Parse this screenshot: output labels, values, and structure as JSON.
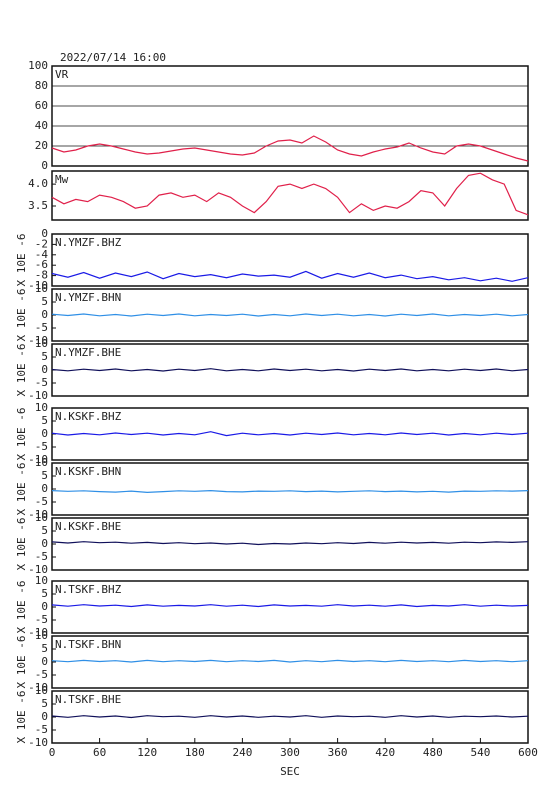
{
  "chart_data": [
    {
      "type": "line",
      "title": "2022/07/14 16:00",
      "label": "VR",
      "color": "#e0204a",
      "ylim": [
        0,
        100
      ],
      "yticks": [
        0,
        20,
        40,
        60,
        80,
        100
      ],
      "grid": true,
      "x": [
        0,
        15,
        30,
        45,
        60,
        75,
        90,
        105,
        120,
        135,
        150,
        165,
        180,
        195,
        210,
        225,
        240,
        255,
        270,
        285,
        300,
        315,
        330,
        345,
        360,
        375,
        390,
        405,
        420,
        435,
        450,
        465,
        480,
        495,
        510,
        525,
        540,
        555,
        570,
        585,
        600
      ],
      "values": [
        18,
        14,
        16,
        20,
        22,
        20,
        17,
        14,
        12,
        13,
        15,
        17,
        18,
        16,
        14,
        12,
        11,
        13,
        20,
        25,
        26,
        23,
        30,
        24,
        16,
        12,
        10,
        14,
        17,
        19,
        23,
        18,
        14,
        12,
        20,
        22,
        20,
        16,
        12,
        8,
        5
      ]
    },
    {
      "type": "line",
      "label": "Mw",
      "color": "#e0204a",
      "ylim": [
        3.18,
        4.3
      ],
      "yticks": [
        3.5,
        {
          "value": 4,
          "label": "4.0"
        }
      ],
      "x": [
        0,
        15,
        30,
        45,
        60,
        75,
        90,
        105,
        120,
        135,
        150,
        165,
        180,
        195,
        210,
        225,
        240,
        255,
        270,
        285,
        300,
        315,
        330,
        345,
        360,
        375,
        390,
        405,
        420,
        435,
        450,
        465,
        480,
        495,
        510,
        525,
        540,
        555,
        570,
        585,
        600
      ],
      "values": [
        3.7,
        3.55,
        3.65,
        3.6,
        3.75,
        3.7,
        3.6,
        3.45,
        3.5,
        3.75,
        3.8,
        3.7,
        3.75,
        3.6,
        3.8,
        3.7,
        3.5,
        3.35,
        3.6,
        3.95,
        4.0,
        3.9,
        4.0,
        3.9,
        3.7,
        3.35,
        3.55,
        3.4,
        3.5,
        3.45,
        3.6,
        3.85,
        3.8,
        3.5,
        3.9,
        4.2,
        4.25,
        4.1,
        4.0,
        3.4,
        3.3
      ]
    },
    {
      "type": "line",
      "label": "N.YMZF.BHZ",
      "ylabel": "X 10E -6",
      "color": "#1a1ae6",
      "ylim": [
        -10,
        0
      ],
      "yticks": [
        -10,
        -8,
        -6,
        -4,
        -2,
        0
      ],
      "x": [
        0,
        20,
        40,
        60,
        80,
        100,
        120,
        140,
        160,
        180,
        200,
        220,
        240,
        260,
        280,
        300,
        320,
        340,
        360,
        380,
        400,
        420,
        440,
        460,
        480,
        500,
        520,
        540,
        560,
        580,
        600
      ],
      "values": [
        -7.6,
        -8.3,
        -7.4,
        -8.5,
        -7.5,
        -8.2,
        -7.3,
        -8.6,
        -7.6,
        -8.2,
        -7.8,
        -8.4,
        -7.7,
        -8.1,
        -7.9,
        -8.3,
        -7.2,
        -8.5,
        -7.6,
        -8.3,
        -7.5,
        -8.4,
        -7.9,
        -8.6,
        -8.2,
        -8.8,
        -8.4,
        -9.0,
        -8.5,
        -9.1,
        -8.4
      ]
    },
    {
      "type": "line",
      "label": "N.YMZF.BHN",
      "ylabel": "X 10E -6",
      "color": "#2f8fe6",
      "ylim": [
        -10,
        10
      ],
      "yticks": [
        -10,
        -5,
        0,
        5,
        10
      ],
      "x": [
        0,
        20,
        40,
        60,
        80,
        100,
        120,
        140,
        160,
        180,
        200,
        220,
        240,
        260,
        280,
        300,
        320,
        340,
        360,
        380,
        400,
        420,
        440,
        460,
        480,
        500,
        520,
        540,
        560,
        580,
        600
      ],
      "values": [
        0.3,
        -0.2,
        0.4,
        -0.3,
        0.2,
        -0.4,
        0.3,
        -0.2,
        0.4,
        -0.3,
        0.2,
        -0.2,
        0.3,
        -0.4,
        0.2,
        -0.3,
        0.4,
        -0.2,
        0.3,
        -0.3,
        0.2,
        -0.4,
        0.3,
        -0.2,
        0.4,
        -0.3,
        0.2,
        -0.2,
        0.3,
        -0.3,
        0.2
      ]
    },
    {
      "type": "line",
      "label": "N.YMZF.BHE",
      "ylabel": "X 10E -6",
      "color": "#10105a",
      "ylim": [
        -10,
        10
      ],
      "yticks": [
        -10,
        -5,
        0,
        5,
        10
      ],
      "x": [
        0,
        20,
        40,
        60,
        80,
        100,
        120,
        140,
        160,
        180,
        200,
        220,
        240,
        260,
        280,
        300,
        320,
        340,
        360,
        380,
        400,
        420,
        440,
        460,
        480,
        500,
        520,
        540,
        560,
        580,
        600
      ],
      "values": [
        0.2,
        -0.3,
        0.3,
        -0.2,
        0.4,
        -0.3,
        0.2,
        -0.4,
        0.3,
        -0.2,
        0.5,
        -0.3,
        0.2,
        -0.3,
        0.4,
        -0.2,
        0.3,
        -0.3,
        0.2,
        -0.4,
        0.3,
        -0.2,
        0.4,
        -0.3,
        0.2,
        -0.3,
        0.3,
        -0.2,
        0.4,
        -0.3,
        0.2
      ]
    },
    {
      "type": "line",
      "label": "N.KSKF.BHZ",
      "ylabel": "X 10E -6",
      "color": "#1a1ae6",
      "ylim": [
        -10,
        10
      ],
      "yticks": [
        -10,
        -5,
        0,
        5,
        10
      ],
      "x": [
        0,
        20,
        40,
        60,
        80,
        100,
        120,
        140,
        160,
        180,
        200,
        220,
        240,
        260,
        280,
        300,
        320,
        340,
        360,
        380,
        400,
        420,
        440,
        460,
        480,
        500,
        520,
        540,
        560,
        580,
        600
      ],
      "values": [
        0.3,
        -0.4,
        0.2,
        -0.3,
        0.4,
        -0.2,
        0.3,
        -0.4,
        0.2,
        -0.3,
        0.9,
        -0.6,
        0.3,
        -0.3,
        0.2,
        -0.4,
        0.3,
        -0.2,
        0.4,
        -0.3,
        0.2,
        -0.3,
        0.4,
        -0.2,
        0.3,
        -0.4,
        0.2,
        -0.3,
        0.3,
        -0.2,
        0.3
      ]
    },
    {
      "type": "line",
      "label": "N.KSKF.BHN",
      "ylabel": "X 10E -6",
      "color": "#2f8fe6",
      "ylim": [
        -10,
        10
      ],
      "yticks": [
        -10,
        -5,
        0,
        5,
        10
      ],
      "x": [
        0,
        20,
        40,
        60,
        80,
        100,
        120,
        140,
        160,
        180,
        200,
        220,
        240,
        260,
        280,
        300,
        320,
        340,
        360,
        380,
        400,
        420,
        440,
        460,
        480,
        500,
        520,
        540,
        560,
        580,
        600
      ],
      "values": [
        -0.6,
        -0.9,
        -0.7,
        -1.0,
        -1.2,
        -0.8,
        -1.3,
        -1.0,
        -0.7,
        -0.9,
        -0.6,
        -1.0,
        -1.1,
        -0.8,
        -0.9,
        -0.7,
        -1.0,
        -0.8,
        -1.1,
        -0.9,
        -0.7,
        -1.0,
        -0.8,
        -1.1,
        -0.9,
        -1.2,
        -0.8,
        -0.9,
        -0.7,
        -0.8,
        -0.6
      ]
    },
    {
      "type": "line",
      "label": "N.KSKF.BHE",
      "ylabel": "X 10E -6",
      "color": "#10105a",
      "ylim": [
        -10,
        10
      ],
      "yticks": [
        -10,
        -5,
        0,
        5,
        10
      ],
      "x": [
        0,
        20,
        40,
        60,
        80,
        100,
        120,
        140,
        160,
        180,
        200,
        220,
        240,
        260,
        280,
        300,
        320,
        340,
        360,
        380,
        400,
        420,
        440,
        460,
        480,
        500,
        520,
        540,
        560,
        580,
        600
      ],
      "values": [
        0.8,
        0.4,
        0.9,
        0.5,
        0.7,
        0.3,
        0.6,
        0.2,
        0.5,
        0.1,
        0.4,
        0.0,
        0.3,
        -0.2,
        0.2,
        0.0,
        0.4,
        0.1,
        0.5,
        0.2,
        0.6,
        0.3,
        0.7,
        0.4,
        0.6,
        0.3,
        0.7,
        0.5,
        0.8,
        0.6,
        0.9
      ]
    },
    {
      "type": "line",
      "label": "N.TSKF.BHZ",
      "ylabel": "X 10E -6",
      "color": "#1a1ae6",
      "ylim": [
        -10,
        10
      ],
      "yticks": [
        -10,
        -5,
        0,
        5,
        10
      ],
      "x": [
        0,
        20,
        40,
        60,
        80,
        100,
        120,
        140,
        160,
        180,
        200,
        220,
        240,
        260,
        280,
        300,
        320,
        340,
        360,
        380,
        400,
        420,
        440,
        460,
        480,
        500,
        520,
        540,
        560,
        580,
        600
      ],
      "values": [
        0.8,
        0.3,
        0.9,
        0.4,
        0.7,
        0.2,
        0.8,
        0.3,
        0.6,
        0.4,
        0.9,
        0.3,
        0.7,
        0.2,
        0.8,
        0.4,
        0.6,
        0.3,
        0.9,
        0.4,
        0.7,
        0.3,
        0.8,
        0.2,
        0.6,
        0.4,
        0.9,
        0.3,
        0.7,
        0.4,
        0.6
      ]
    },
    {
      "type": "line",
      "label": "N.TSKF.BHN",
      "ylabel": "X 10E -6",
      "color": "#2f8fe6",
      "ylim": [
        -10,
        10
      ],
      "yticks": [
        -10,
        -5,
        0,
        5,
        10
      ],
      "x": [
        0,
        20,
        40,
        60,
        80,
        100,
        120,
        140,
        160,
        180,
        200,
        220,
        240,
        260,
        280,
        300,
        320,
        340,
        360,
        380,
        400,
        420,
        440,
        460,
        480,
        500,
        520,
        540,
        560,
        580,
        600
      ],
      "values": [
        0.5,
        0.1,
        0.6,
        0.2,
        0.5,
        0.0,
        0.6,
        0.1,
        0.5,
        0.2,
        0.6,
        0.1,
        0.5,
        0.2,
        0.6,
        0.0,
        0.5,
        0.1,
        0.6,
        0.2,
        0.5,
        0.1,
        0.6,
        0.2,
        0.5,
        0.1,
        0.6,
        0.2,
        0.5,
        0.1,
        0.5
      ]
    },
    {
      "type": "line",
      "label": "N.TSKF.BHE",
      "ylabel": "X 10E -6",
      "color": "#10105a",
      "ylim": [
        -10,
        10
      ],
      "yticks": [
        -10,
        -5,
        0,
        5,
        10
      ],
      "xlabel": "SEC",
      "xlim": [
        0,
        600
      ],
      "xticks": [
        0,
        60,
        120,
        180,
        240,
        300,
        360,
        420,
        480,
        540,
        600
      ],
      "x": [
        0,
        20,
        40,
        60,
        80,
        100,
        120,
        140,
        160,
        180,
        200,
        220,
        240,
        260,
        280,
        300,
        320,
        340,
        360,
        380,
        400,
        420,
        440,
        460,
        480,
        500,
        520,
        540,
        560,
        580,
        600
      ],
      "values": [
        0.4,
        -0.1,
        0.5,
        0.0,
        0.4,
        -0.2,
        0.5,
        0.1,
        0.3,
        -0.1,
        0.5,
        0.0,
        0.4,
        -0.1,
        0.3,
        0.0,
        0.5,
        -0.1,
        0.4,
        0.1,
        0.3,
        -0.1,
        0.5,
        0.0,
        0.4,
        -0.1,
        0.3,
        0.1,
        0.4,
        0.0,
        0.3
      ]
    }
  ]
}
